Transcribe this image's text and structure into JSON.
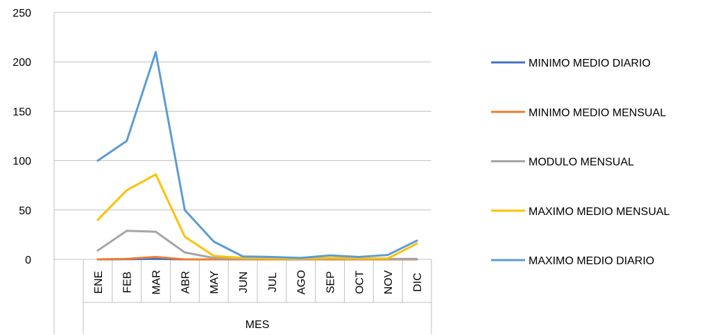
{
  "chart_data": {
    "type": "line",
    "xlabel": "MES",
    "categories": [
      "ENE",
      "FEB",
      "MAR",
      "ABR",
      "MAY",
      "JUN",
      "JUL",
      "AGO",
      "SEP",
      "OCT",
      "NOV",
      "DIC"
    ],
    "ylim": [
      0,
      250
    ],
    "yticks": [
      0,
      50,
      100,
      150,
      200,
      250
    ],
    "grid": true,
    "legend_position": "right",
    "series": [
      {
        "name": "MINIMO MEDIO DIARIO",
        "color": "#4472C4",
        "values": [
          0,
          0.2,
          0.5,
          0,
          0,
          0,
          0,
          0,
          0,
          0,
          0,
          0
        ]
      },
      {
        "name": "MINIMO MEDIO MENSUAL",
        "color": "#ED7D31",
        "values": [
          0,
          0.5,
          2.5,
          0,
          0,
          0,
          0,
          0,
          0,
          0,
          0,
          0
        ]
      },
      {
        "name": "MODULO MENSUAL",
        "color": "#A5A5A5",
        "values": [
          9,
          29,
          28,
          7,
          1.5,
          0.5,
          0.5,
          0.3,
          0.8,
          0.5,
          0.5,
          0.5
        ]
      },
      {
        "name": "MAXIMO MEDIO MENSUAL",
        "color": "#FFC000",
        "values": [
          40,
          70,
          86,
          23,
          3.5,
          1.5,
          1,
          0.8,
          1.5,
          1,
          1,
          16
        ]
      },
      {
        "name": "MAXIMO MEDIO DIARIO",
        "color": "#5B9BD5",
        "values": [
          100,
          120,
          210,
          50,
          18,
          3,
          2.5,
          1.5,
          4,
          2.5,
          4.5,
          19
        ]
      }
    ]
  }
}
